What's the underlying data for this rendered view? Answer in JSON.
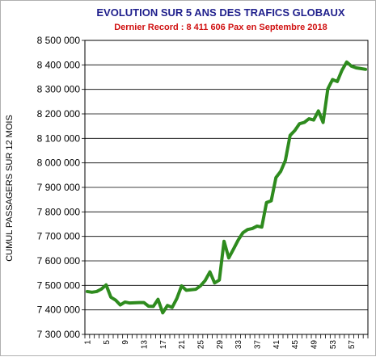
{
  "chart_data": {
    "type": "line",
    "title": "EVOLUTION SUR 5 ANS DES TRAFICS GLOBAUX",
    "subtitle": "Dernier Record : 8 411 606 Pax en Septembre 2018",
    "ylabel": "CUMUL PASSAGERS SUR 12 MOIS",
    "xlabel": "",
    "ylim": [
      7300000,
      8500000
    ],
    "yticks": [
      7300000,
      7400000,
      7500000,
      7600000,
      7700000,
      7800000,
      7900000,
      8000000,
      8100000,
      8200000,
      8300000,
      8400000,
      8500000
    ],
    "ytick_labels": [
      "7 300 000",
      "7 400 000",
      "7 500 000",
      "7 600 000",
      "7 700 000",
      "7 800 000",
      "7 900 000",
      "8 000 000",
      "8 100 000",
      "8 200 000",
      "8 300 000",
      "8 400 000",
      "8 500 000"
    ],
    "x_range": [
      1,
      60
    ],
    "xtick_labels": [
      "1",
      "5",
      "9",
      "13",
      "17",
      "21",
      "25",
      "29",
      "33",
      "37",
      "41",
      "45",
      "49",
      "53",
      "57"
    ],
    "xtick_values": [
      1,
      5,
      9,
      13,
      17,
      21,
      25,
      29,
      33,
      37,
      41,
      45,
      49,
      53,
      57
    ],
    "grid": true,
    "series_color": "#2e8b1e",
    "series": [
      {
        "x": [
          1,
          2,
          3,
          4,
          5,
          6,
          7,
          8,
          9,
          10,
          11,
          12,
          13,
          14,
          15,
          16,
          17,
          18,
          19,
          20,
          21,
          22,
          23,
          24,
          25,
          26,
          27,
          28,
          29,
          30,
          31,
          32,
          33,
          34,
          35,
          36,
          37,
          38,
          39,
          40,
          41,
          42,
          43,
          44,
          45,
          46,
          47,
          48,
          49,
          50,
          51,
          52,
          53,
          54,
          55,
          56,
          57,
          58,
          59,
          60
        ],
        "values": [
          7475000,
          7472000,
          7475000,
          7485000,
          7502000,
          7452000,
          7440000,
          7420000,
          7432000,
          7428000,
          7429000,
          7430000,
          7430000,
          7415000,
          7414000,
          7443000,
          7388000,
          7418000,
          7410000,
          7447000,
          7498000,
          7480000,
          7482000,
          7484000,
          7498000,
          7520000,
          7555000,
          7510000,
          7522000,
          7680000,
          7612000,
          7648000,
          7685000,
          7715000,
          7728000,
          7732000,
          7742000,
          7738000,
          7838000,
          7845000,
          7940000,
          7965000,
          8010000,
          8112000,
          8132000,
          8160000,
          8165000,
          8180000,
          8175000,
          8212000,
          8165000,
          8302000,
          8340000,
          8332000,
          8378000,
          8411606,
          8395000,
          8388000,
          8385000,
          8382000
        ]
      }
    ]
  }
}
